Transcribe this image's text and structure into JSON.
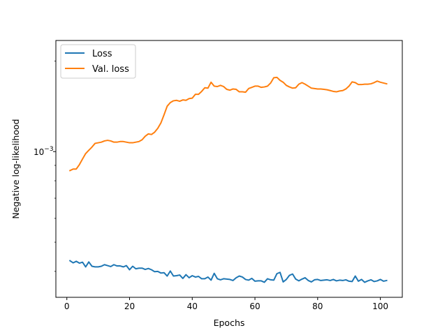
{
  "chart_data": {
    "type": "line",
    "xlabel": "Epochs",
    "ylabel": "Negative log-likelihood",
    "xlim": [
      -3.5,
      107
    ],
    "ylim": [
      0.000328,
      0.00234
    ],
    "yscale": "log",
    "x_ticks": [
      0,
      20,
      40,
      60,
      80,
      100
    ],
    "y_major_tick": {
      "value": 0.001,
      "base": "10",
      "exponent": "−3"
    },
    "grid": false,
    "legend": "top-left",
    "series": [
      {
        "name": "Loss",
        "color": "#1f77b4",
        "x": [
          1,
          2,
          3,
          4,
          5,
          6,
          7,
          8,
          9,
          10,
          11,
          12,
          13,
          14,
          15,
          16,
          17,
          18,
          19,
          20,
          21,
          22,
          23,
          24,
          25,
          26,
          27,
          28,
          29,
          30,
          31,
          32,
          33,
          34,
          35,
          36,
          37,
          38,
          39,
          40,
          41,
          42,
          43,
          44,
          45,
          46,
          47,
          48,
          49,
          50,
          51,
          52,
          53,
          54,
          55,
          56,
          57,
          58,
          59,
          60,
          61,
          62,
          63,
          64,
          65,
          66,
          67,
          68,
          69,
          70,
          71,
          72,
          73,
          74,
          75,
          76,
          77,
          78,
          79,
          80,
          81,
          82,
          83,
          84,
          85,
          86,
          87,
          88,
          89,
          90,
          91,
          92,
          93,
          94,
          95,
          96,
          97,
          98,
          99,
          100,
          101,
          102
        ],
        "y": [
          0.000434,
          0.000427,
          0.000432,
          0.000426,
          0.000429,
          0.000414,
          0.00043,
          0.000416,
          0.000414,
          0.000414,
          0.000416,
          0.000421,
          0.000418,
          0.000415,
          0.000421,
          0.000417,
          0.000417,
          0.000414,
          0.000418,
          0.000405,
          0.000416,
          0.000408,
          0.00041,
          0.00041,
          0.000406,
          0.000409,
          0.000405,
          0.000399,
          0.0004,
          0.000395,
          0.000396,
          0.000386,
          0.000401,
          0.000386,
          0.000387,
          0.000389,
          0.000379,
          0.00039,
          0.000381,
          0.000387,
          0.000383,
          0.000385,
          0.000378,
          0.000378,
          0.000383,
          0.000374,
          0.000394,
          0.000378,
          0.000375,
          0.000378,
          0.000377,
          0.000376,
          0.000373,
          0.000381,
          0.000386,
          0.000383,
          0.000376,
          0.000374,
          0.000379,
          0.000371,
          0.000372,
          0.000372,
          0.000368,
          0.000378,
          0.000375,
          0.000374,
          0.000393,
          0.000397,
          0.000369,
          0.000376,
          0.000388,
          0.000392,
          0.000377,
          0.000372,
          0.000377,
          0.000381,
          0.000373,
          0.000369,
          0.000375,
          0.000376,
          0.000373,
          0.000374,
          0.000375,
          0.000373,
          0.000376,
          0.000372,
          0.000374,
          0.000373,
          0.000375,
          0.000371,
          0.00037,
          0.000386,
          0.000371,
          0.000376,
          0.000368,
          0.000372,
          0.000375,
          0.00037,
          0.000372,
          0.000376,
          0.000371,
          0.000373
        ]
      },
      {
        "name": "Val. loss",
        "color": "#ff7f0e",
        "x": [
          1,
          2,
          3,
          4,
          5,
          6,
          7,
          8,
          9,
          10,
          11,
          12,
          13,
          14,
          15,
          16,
          17,
          18,
          19,
          20,
          21,
          22,
          23,
          24,
          25,
          26,
          27,
          28,
          29,
          30,
          31,
          32,
          33,
          34,
          35,
          36,
          37,
          38,
          39,
          40,
          41,
          42,
          43,
          44,
          45,
          46,
          47,
          48,
          49,
          50,
          51,
          52,
          53,
          54,
          55,
          56,
          57,
          58,
          59,
          60,
          61,
          62,
          63,
          64,
          65,
          66,
          67,
          68,
          69,
          70,
          71,
          72,
          73,
          74,
          75,
          76,
          77,
          78,
          79,
          80,
          81,
          82,
          83,
          84,
          85,
          86,
          87,
          88,
          89,
          90,
          91,
          92,
          93,
          94,
          95,
          96,
          97,
          98,
          99,
          100,
          101,
          102
        ],
        "y": [
          0.000865,
          0.000875,
          0.000875,
          0.000905,
          0.000945,
          0.000985,
          0.00101,
          0.001035,
          0.001065,
          0.00107,
          0.001075,
          0.001085,
          0.00109,
          0.001085,
          0.001075,
          0.001075,
          0.00108,
          0.00108,
          0.001075,
          0.00107,
          0.00107,
          0.001075,
          0.00108,
          0.001095,
          0.001125,
          0.001145,
          0.00114,
          0.00116,
          0.001195,
          0.001245,
          0.001325,
          0.001415,
          0.001455,
          0.001475,
          0.00148,
          0.00147,
          0.001485,
          0.00148,
          0.0015,
          0.001505,
          0.00155,
          0.00155,
          0.001585,
          0.00163,
          0.001625,
          0.0017,
          0.00165,
          0.001645,
          0.00166,
          0.001645,
          0.00161,
          0.0016,
          0.001615,
          0.00161,
          0.00158,
          0.00158,
          0.001575,
          0.00162,
          0.001635,
          0.00165,
          0.00165,
          0.001635,
          0.00164,
          0.00165,
          0.00169,
          0.00176,
          0.001765,
          0.001725,
          0.0017,
          0.00166,
          0.00164,
          0.001625,
          0.00163,
          0.001675,
          0.001695,
          0.001675,
          0.00165,
          0.001625,
          0.00162,
          0.001615,
          0.001615,
          0.00161,
          0.001605,
          0.001595,
          0.001585,
          0.00158,
          0.00159,
          0.001595,
          0.001615,
          0.00165,
          0.001705,
          0.001695,
          0.00167,
          0.00167,
          0.001675,
          0.001675,
          0.00168,
          0.001695,
          0.001715,
          0.0017,
          0.00169,
          0.00168
        ]
      }
    ]
  }
}
